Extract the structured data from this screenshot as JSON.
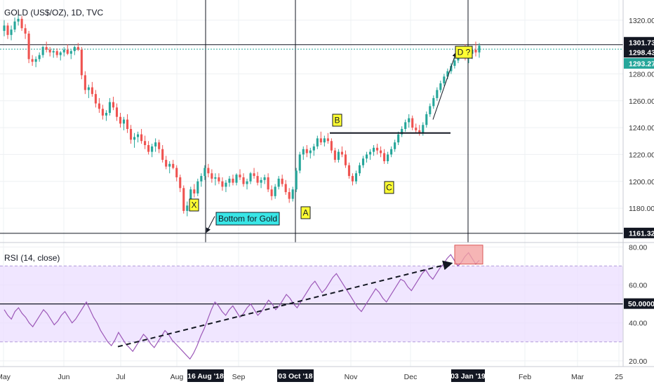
{
  "chart_data": [
    {
      "type": "candlestick",
      "title": "GOLD (US$/OZ), 1D, TVC",
      "y_ticks": [
        1180,
        1200,
        1220,
        1240,
        1260,
        1280,
        1320
      ],
      "ylim": [
        1155,
        1335
      ],
      "x_ticks": [
        "May",
        "Jun",
        "Jul",
        "Aug",
        "Sep",
        "Nov",
        "Dec",
        "Feb",
        "Mar",
        "25"
      ],
      "highlighted_dates": [
        "16 Aug '18",
        "03 Oct '18",
        "03 Jan '19"
      ],
      "price_labels": [
        {
          "text": "1301.73",
          "value": 1301.73,
          "color": "#131722"
        },
        {
          "text": "1298.43",
          "value": 1298.43,
          "color": "#131722"
        },
        {
          "text": "1293.27",
          "value": 1293.27,
          "color": "#26a69a"
        },
        {
          "text": "1161.32",
          "value": 1161.32,
          "color": "#131722"
        }
      ],
      "horizontal_lines": [
        1301.73,
        1298.43,
        1161.32
      ],
      "annotations": [
        {
          "text": "X",
          "date": "16 Aug '18",
          "value": 1179
        },
        {
          "text": "Bottom for Gold",
          "date": "16 Aug '18",
          "value": 1170
        },
        {
          "text": "A",
          "date": "03 Oct '18",
          "value": 1178
        },
        {
          "text": "B",
          "date": "Oct '18",
          "value": 1243
        },
        {
          "text": "C",
          "date": "Nov '18",
          "value": 1194
        },
        {
          "text": "D ?",
          "date": "03 Jan '19",
          "value": 1299
        }
      ],
      "candles_ohlc": [
        [
          1312,
          1320,
          1308,
          1316
        ],
        [
          1316,
          1318,
          1306,
          1309
        ],
        [
          1309,
          1316,
          1305,
          1313
        ],
        [
          1313,
          1322,
          1311,
          1319
        ],
        [
          1319,
          1324,
          1316,
          1321
        ],
        [
          1321,
          1323,
          1312,
          1314
        ],
        [
          1314,
          1317,
          1306,
          1310
        ],
        [
          1310,
          1312,
          1288,
          1291
        ],
        [
          1291,
          1294,
          1286,
          1289
        ],
        [
          1289,
          1293,
          1285,
          1291
        ],
        [
          1291,
          1296,
          1289,
          1294
        ],
        [
          1294,
          1301,
          1292,
          1300
        ],
        [
          1300,
          1304,
          1296,
          1298
        ],
        [
          1298,
          1300,
          1293,
          1296
        ],
        [
          1296,
          1299,
          1292,
          1297
        ],
        [
          1297,
          1299,
          1292,
          1294
        ],
        [
          1294,
          1297,
          1290,
          1296
        ],
        [
          1296,
          1300,
          1293,
          1298
        ],
        [
          1298,
          1302,
          1294,
          1295
        ],
        [
          1295,
          1298,
          1291,
          1297
        ],
        [
          1297,
          1301,
          1294,
          1300
        ],
        [
          1300,
          1303,
          1297,
          1298
        ],
        [
          1298,
          1300,
          1276,
          1279
        ],
        [
          1279,
          1282,
          1265,
          1268
        ],
        [
          1268,
          1272,
          1262,
          1270
        ],
        [
          1270,
          1274,
          1263,
          1265
        ],
        [
          1265,
          1268,
          1255,
          1258
        ],
        [
          1258,
          1262,
          1251,
          1254
        ],
        [
          1254,
          1257,
          1246,
          1249
        ],
        [
          1249,
          1253,
          1245,
          1251
        ],
        [
          1251,
          1262,
          1249,
          1259
        ],
        [
          1259,
          1263,
          1253,
          1255
        ],
        [
          1255,
          1258,
          1245,
          1248
        ],
        [
          1248,
          1251,
          1240,
          1243
        ],
        [
          1243,
          1248,
          1238,
          1246
        ],
        [
          1246,
          1250,
          1236,
          1239
        ],
        [
          1239,
          1242,
          1228,
          1231
        ],
        [
          1231,
          1236,
          1225,
          1233
        ],
        [
          1233,
          1237,
          1229,
          1235
        ],
        [
          1235,
          1239,
          1228,
          1230
        ],
        [
          1230,
          1234,
          1224,
          1227
        ],
        [
          1227,
          1230,
          1220,
          1222
        ],
        [
          1222,
          1228,
          1218,
          1226
        ],
        [
          1226,
          1232,
          1222,
          1229
        ],
        [
          1229,
          1231,
          1221,
          1224
        ],
        [
          1224,
          1227,
          1214,
          1216
        ],
        [
          1216,
          1219,
          1209,
          1211
        ],
        [
          1211,
          1215,
          1206,
          1213
        ],
        [
          1213,
          1216,
          1209,
          1210
        ],
        [
          1210,
          1212,
          1200,
          1203
        ],
        [
          1203,
          1205,
          1192,
          1195
        ],
        [
          1195,
          1197,
          1176,
          1178
        ],
        [
          1178,
          1185,
          1174,
          1182
        ],
        [
          1182,
          1196,
          1180,
          1194
        ],
        [
          1194,
          1198,
          1188,
          1191
        ],
        [
          1191,
          1202,
          1189,
          1200
        ],
        [
          1200,
          1206,
          1196,
          1204
        ],
        [
          1204,
          1212,
          1201,
          1210
        ],
        [
          1210,
          1213,
          1203,
          1206
        ],
        [
          1206,
          1209,
          1199,
          1202
        ],
        [
          1202,
          1206,
          1197,
          1203
        ],
        [
          1203,
          1206,
          1198,
          1200
        ],
        [
          1200,
          1203,
          1193,
          1196
        ],
        [
          1196,
          1201,
          1192,
          1199
        ],
        [
          1199,
          1204,
          1196,
          1202
        ],
        [
          1202,
          1205,
          1197,
          1199
        ],
        [
          1199,
          1206,
          1197,
          1205
        ],
        [
          1205,
          1209,
          1201,
          1203
        ],
        [
          1203,
          1206,
          1196,
          1198
        ],
        [
          1198,
          1202,
          1194,
          1200
        ],
        [
          1200,
          1207,
          1198,
          1206
        ],
        [
          1206,
          1210,
          1202,
          1204
        ],
        [
          1204,
          1207,
          1197,
          1199
        ],
        [
          1199,
          1203,
          1195,
          1201
        ],
        [
          1201,
          1205,
          1198,
          1203
        ],
        [
          1203,
          1206,
          1192,
          1194
        ],
        [
          1194,
          1197,
          1186,
          1189
        ],
        [
          1189,
          1198,
          1187,
          1196
        ],
        [
          1196,
          1204,
          1194,
          1202
        ],
        [
          1202,
          1205,
          1196,
          1198
        ],
        [
          1198,
          1201,
          1190,
          1192
        ],
        [
          1192,
          1195,
          1184,
          1187
        ],
        [
          1187,
          1196,
          1185,
          1194
        ],
        [
          1194,
          1210,
          1192,
          1208
        ],
        [
          1208,
          1222,
          1206,
          1220
        ],
        [
          1220,
          1226,
          1216,
          1224
        ],
        [
          1224,
          1227,
          1218,
          1221
        ],
        [
          1221,
          1225,
          1217,
          1223
        ],
        [
          1223,
          1228,
          1219,
          1226
        ],
        [
          1226,
          1234,
          1224,
          1232
        ],
        [
          1232,
          1237,
          1227,
          1229
        ],
        [
          1229,
          1234,
          1226,
          1232
        ],
        [
          1232,
          1236,
          1228,
          1230
        ],
        [
          1230,
          1232,
          1221,
          1223
        ],
        [
          1223,
          1225,
          1214,
          1216
        ],
        [
          1216,
          1224,
          1214,
          1222
        ],
        [
          1222,
          1226,
          1218,
          1220
        ],
        [
          1220,
          1223,
          1210,
          1212
        ],
        [
          1212,
          1214,
          1202,
          1204
        ],
        [
          1204,
          1206,
          1197,
          1200
        ],
        [
          1200,
          1208,
          1198,
          1206
        ],
        [
          1206,
          1214,
          1204,
          1212
        ],
        [
          1212,
          1219,
          1210,
          1217
        ],
        [
          1217,
          1222,
          1214,
          1220
        ],
        [
          1220,
          1224,
          1216,
          1222
        ],
        [
          1222,
          1227,
          1219,
          1225
        ],
        [
          1225,
          1228,
          1220,
          1223
        ],
        [
          1223,
          1226,
          1218,
          1221
        ],
        [
          1221,
          1224,
          1213,
          1215
        ],
        [
          1215,
          1222,
          1213,
          1220
        ],
        [
          1220,
          1226,
          1218,
          1224
        ],
        [
          1224,
          1231,
          1222,
          1229
        ],
        [
          1229,
          1237,
          1227,
          1235
        ],
        [
          1235,
          1241,
          1233,
          1239
        ],
        [
          1239,
          1246,
          1237,
          1244
        ],
        [
          1244,
          1250,
          1240,
          1247
        ],
        [
          1247,
          1249,
          1238,
          1240
        ],
        [
          1240,
          1243,
          1236,
          1238
        ],
        [
          1238,
          1242,
          1234,
          1236
        ],
        [
          1236,
          1244,
          1234,
          1242
        ],
        [
          1242,
          1252,
          1240,
          1250
        ],
        [
          1250,
          1258,
          1248,
          1256
        ],
        [
          1256,
          1264,
          1254,
          1262
        ],
        [
          1262,
          1270,
          1260,
          1268
        ],
        [
          1268,
          1275,
          1266,
          1273
        ],
        [
          1273,
          1280,
          1271,
          1278
        ],
        [
          1278,
          1284,
          1276,
          1282
        ],
        [
          1282,
          1288,
          1280,
          1286
        ],
        [
          1286,
          1292,
          1284,
          1290
        ],
        [
          1290,
          1296,
          1288,
          1294
        ],
        [
          1294,
          1299,
          1292,
          1297
        ],
        [
          1297,
          1302,
          1290,
          1293
        ],
        [
          1293,
          1296,
          1288,
          1295
        ],
        [
          1295,
          1301,
          1291,
          1298
        ],
        [
          1298,
          1304,
          1293,
          1296
        ],
        [
          1296,
          1303,
          1292,
          1301
        ]
      ]
    },
    {
      "type": "line",
      "title": "RSI (14, close)",
      "y_ticks": [
        20,
        40,
        60,
        80
      ],
      "ylim": [
        17,
        82
      ],
      "overbought_band": [
        30,
        70
      ],
      "level_line_label": "50.0000",
      "level_line_value": 50,
      "highlighted_dates": [
        "16 Aug '18",
        "03 Oct '18",
        "03 Jan '19"
      ],
      "series": [
        {
          "values": [
            47,
            44,
            42,
            46,
            48,
            45,
            43,
            40,
            38,
            41,
            44,
            47,
            45,
            42,
            39,
            41,
            44,
            46,
            43,
            40,
            42,
            45,
            48,
            51,
            47,
            43,
            40,
            36,
            33,
            30,
            28,
            31,
            35,
            32,
            29,
            27,
            25,
            28,
            31,
            34,
            32,
            29,
            27,
            30,
            33,
            36,
            34,
            31,
            29,
            27,
            25,
            23,
            21,
            24,
            28,
            33,
            37,
            42,
            47,
            51,
            49,
            46,
            44,
            47,
            49,
            46,
            43,
            45,
            48,
            50,
            47,
            44,
            46,
            49,
            52,
            50,
            47,
            49,
            52,
            55,
            53,
            50,
            48,
            51,
            54,
            57,
            60,
            62,
            59,
            56,
            58,
            61,
            64,
            66,
            63,
            60,
            57,
            54,
            51,
            48,
            46,
            49,
            52,
            55,
            58,
            56,
            53,
            51,
            54,
            57,
            60,
            63,
            62,
            59,
            57,
            60,
            63,
            66,
            68,
            65,
            63,
            66,
            69,
            71,
            74,
            76,
            73,
            70,
            72,
            75,
            77,
            74,
            71,
            73
          ]
        }
      ]
    }
  ]
}
